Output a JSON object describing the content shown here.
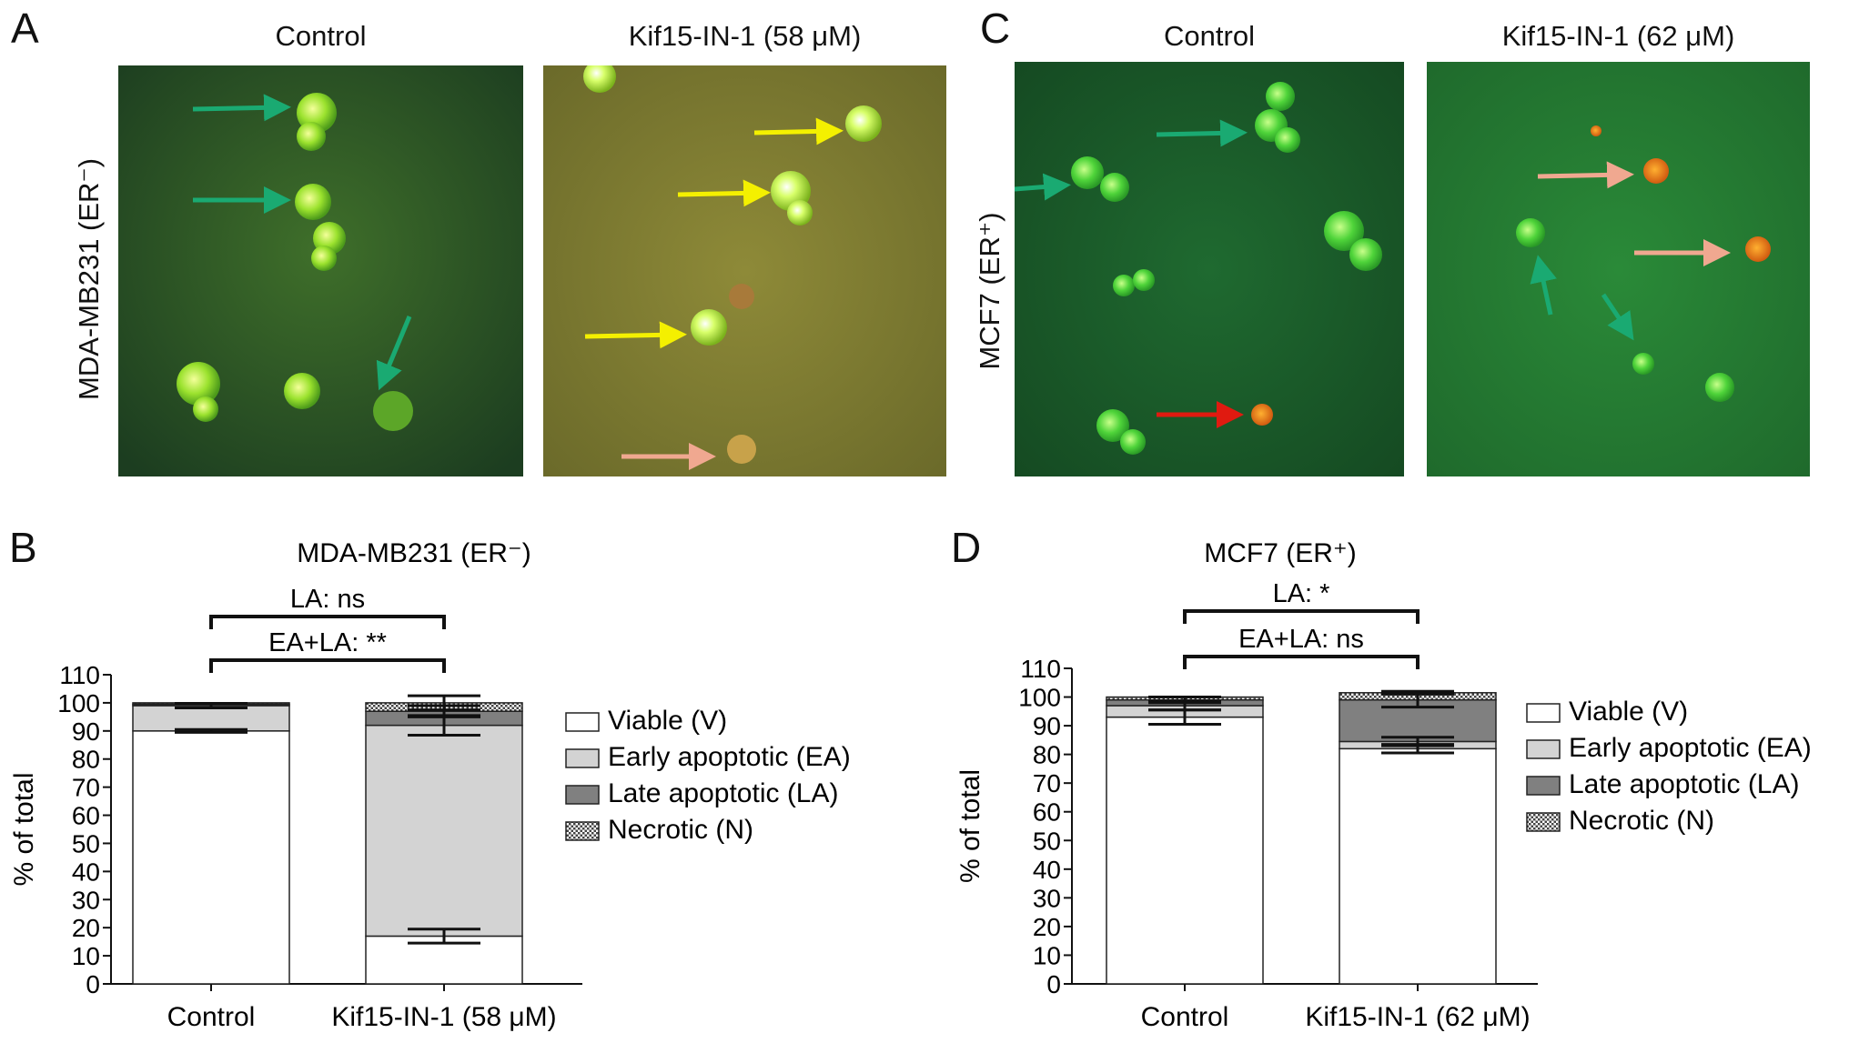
{
  "panels": {
    "A": {
      "letter": "A",
      "row_label": "MDA-MB231 (ER⁻)",
      "left_title": "Control",
      "right_title": "Kif15-IN-1 (58 μM)"
    },
    "C": {
      "letter": "C",
      "row_label": "MCF7 (ER⁺)",
      "left_title": "Control",
      "right_title": "Kif15-IN-1 (62 μM)"
    },
    "B": {
      "letter": "B"
    },
    "D": {
      "letter": "D"
    }
  },
  "colors": {
    "viable": "#ffffff",
    "early_apoptotic": "#d3d3d3",
    "late_apoptotic": "#808080",
    "necrotic": "#9a9a9a",
    "arrow_green": "#1aaa72",
    "arrow_yellow": "#f4f000",
    "arrow_pink": "#f0a890",
    "arrow_red": "#e01a10"
  },
  "chart_data": [
    {
      "type": "bar",
      "stacked": true,
      "title": "MDA-MB231 (ER⁻)",
      "ylabel": "% of total",
      "xlabel": "",
      "ylim": [
        0,
        110
      ],
      "yticks": [
        0,
        10,
        20,
        30,
        40,
        50,
        60,
        70,
        80,
        90,
        100,
        110
      ],
      "categories": [
        "Control",
        "Kif15-IN-1 (58 μM)"
      ],
      "series": [
        {
          "name": "Viable (V)",
          "values": [
            90,
            17
          ]
        },
        {
          "name": "Early apoptotic (EA)",
          "values": [
            9,
            75
          ]
        },
        {
          "name": "Late apoptotic (LA)",
          "values": [
            0.5,
            5
          ]
        },
        {
          "name": "Necrotic (N)",
          "values": [
            0.5,
            3
          ]
        }
      ],
      "error_bars": [
        {
          "category": "Control",
          "at": [
            90,
            99
          ],
          "err": [
            0.5,
            0.8
          ]
        },
        {
          "category": "Kif15-IN-1 (58 μM)",
          "at": [
            17,
            92,
            97,
            100
          ],
          "err": [
            2.5,
            3.5,
            2,
            2.5
          ]
        }
      ],
      "annotations": [
        "LA: ns",
        "EA+LA: **"
      ],
      "legend_position": "right"
    },
    {
      "type": "bar",
      "stacked": true,
      "title": "MCF7 (ER⁺)",
      "ylabel": "% of total",
      "xlabel": "",
      "ylim": [
        0,
        110
      ],
      "yticks": [
        0,
        10,
        20,
        30,
        40,
        50,
        60,
        70,
        80,
        90,
        100,
        110
      ],
      "categories": [
        "Control",
        "Kif15-IN-1 (62 μM)"
      ],
      "series": [
        {
          "name": "Viable (V)",
          "values": [
            93,
            82
          ]
        },
        {
          "name": "Early apoptotic (EA)",
          "values": [
            4,
            2.5
          ]
        },
        {
          "name": "Late apoptotic (LA)",
          "values": [
            2,
            14.5
          ]
        },
        {
          "name": "Necrotic (N)",
          "values": [
            1,
            2.5
          ]
        }
      ],
      "error_bars": [
        {
          "category": "Control",
          "at": [
            93,
            97,
            99
          ],
          "err": [
            2.5,
            1.5,
            1
          ]
        },
        {
          "category": "Kif15-IN-1 (62 μM)",
          "at": [
            82,
            84.5,
            99,
            101.5
          ],
          "err": [
            1.5,
            1.5,
            2.5,
            0.5
          ]
        }
      ],
      "annotations": [
        "LA: *",
        "EA+LA: ns"
      ],
      "legend_position": "right"
    }
  ]
}
